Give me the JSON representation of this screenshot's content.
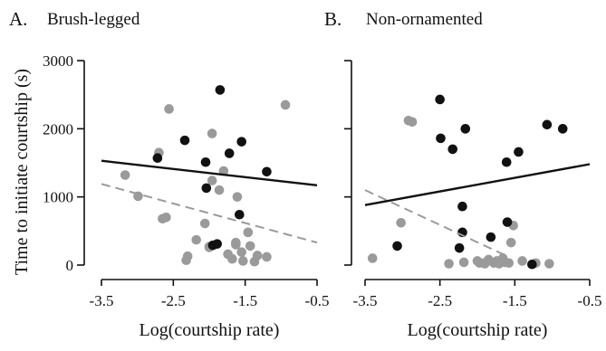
{
  "figure": {
    "ylabel": "Time to initiate courtship (s)",
    "colors": {
      "black_series": "#111111",
      "gray_series": "#9a9a9a",
      "gray_line": "#9a9a9a",
      "axis": "#111111"
    }
  },
  "chart_data": [
    {
      "type": "scatter",
      "panel_letter": "A.",
      "title": "Brush-legged",
      "xlabel": "Log(courtship rate)",
      "ylabel": "Time to initiate courtship (s)",
      "xlim": [
        -3.5,
        -0.5
      ],
      "ylim": [
        0,
        3000
      ],
      "xticks": [
        "-3.5",
        "-2.5",
        "-1.5",
        "-0.5"
      ],
      "xtick_values": [
        -3.5,
        -2.5,
        -1.5,
        -0.5
      ],
      "yticks": [
        "3000",
        "2000",
        "1000",
        "0"
      ],
      "ytick_values": [
        3000,
        2000,
        1000,
        0
      ],
      "grid": false,
      "series": [
        {
          "color": "#111111",
          "fit_line": {
            "x": [
              -3.5,
              -0.5
            ],
            "y": [
              1530,
              1170
            ],
            "style": "solid"
          },
          "points": [
            [
              -2.72,
              1570
            ],
            [
              -2.34,
              1830
            ],
            [
              -2.05,
              1510
            ],
            [
              -2.04,
              1130
            ],
            [
              -1.85,
              2570
            ],
            [
              -1.72,
              1640
            ],
            [
              -1.55,
              1810
            ],
            [
              -1.58,
              740
            ],
            [
              -1.2,
              1370
            ],
            [
              -1.95,
              290
            ],
            [
              -1.89,
              310
            ]
          ]
        },
        {
          "color": "#9a9a9a",
          "fit_line": {
            "x": [
              -3.5,
              -0.5
            ],
            "y": [
              1190,
              330
            ],
            "style": "dashed"
          },
          "points": [
            [
              -3.17,
              1320
            ],
            [
              -2.99,
              1010
            ],
            [
              -2.7,
              1650
            ],
            [
              -2.65,
              680
            ],
            [
              -2.56,
              2290
            ],
            [
              -2.6,
              700
            ],
            [
              -2.32,
              70
            ],
            [
              -2.3,
              130
            ],
            [
              -2.18,
              370
            ],
            [
              -2.06,
              610
            ],
            [
              -2.0,
              270
            ],
            [
              -1.96,
              1930
            ],
            [
              -1.96,
              1240
            ],
            [
              -1.86,
              1100
            ],
            [
              -1.8,
              1380
            ],
            [
              -1.74,
              160
            ],
            [
              -1.68,
              90
            ],
            [
              -1.63,
              330
            ],
            [
              -1.61,
              1000
            ],
            [
              -1.55,
              190
            ],
            [
              -1.53,
              60
            ],
            [
              -1.46,
              480
            ],
            [
              -1.43,
              280
            ],
            [
              -1.37,
              50
            ],
            [
              -1.33,
              140
            ],
            [
              -1.2,
              120
            ],
            [
              -0.94,
              2350
            ],
            [
              -1.63,
              300
            ],
            [
              -2.0,
              260
            ]
          ]
        }
      ]
    },
    {
      "type": "scatter",
      "panel_letter": "B.",
      "title": "Non-ornamented",
      "xlabel": "Log(courtship rate)",
      "xlim": [
        -3.5,
        -0.5
      ],
      "ylim": [
        0,
        3000
      ],
      "xticks": [
        "-3.5",
        "-2.5",
        "-1.5",
        "-0.5"
      ],
      "xtick_values": [
        -3.5,
        -2.5,
        -1.5,
        -0.5
      ],
      "grid": false,
      "series": [
        {
          "color": "#111111",
          "fit_line": {
            "x": [
              -3.5,
              -0.5
            ],
            "y": [
              880,
              1480
            ],
            "style": "solid"
          },
          "points": [
            [
              -3.07,
              280
            ],
            [
              -2.5,
              2430
            ],
            [
              -2.49,
              1860
            ],
            [
              -2.33,
              1700
            ],
            [
              -2.16,
              2000
            ],
            [
              -2.2,
              860
            ],
            [
              -2.2,
              480
            ],
            [
              -2.24,
              250
            ],
            [
              -1.82,
              410
            ],
            [
              -1.61,
              1510
            ],
            [
              -1.6,
              630
            ],
            [
              -1.45,
              1660
            ],
            [
              -1.27,
              10
            ],
            [
              -1.07,
              2060
            ],
            [
              -0.86,
              2000
            ]
          ]
        },
        {
          "color": "#9a9a9a",
          "fit_line": {
            "x": [
              -3.5,
              -1.6
            ],
            "y": [
              1100,
              130
            ],
            "style": "dashed"
          },
          "points": [
            [
              -3.4,
              100
            ],
            [
              -3.02,
              620
            ],
            [
              -2.92,
              2120
            ],
            [
              -2.87,
              2100
            ],
            [
              -2.38,
              20
            ],
            [
              -2.18,
              40
            ],
            [
              -2.0,
              60
            ],
            [
              -1.9,
              20
            ],
            [
              -1.85,
              80
            ],
            [
              -1.78,
              30
            ],
            [
              -1.74,
              60
            ],
            [
              -1.71,
              20
            ],
            [
              -1.66,
              100
            ],
            [
              -1.63,
              40
            ],
            [
              -1.58,
              30
            ],
            [
              -1.52,
              580
            ],
            [
              -1.55,
              330
            ],
            [
              -1.4,
              60
            ],
            [
              -1.22,
              30
            ],
            [
              -1.04,
              20
            ],
            [
              -1.92,
              30
            ],
            [
              -1.97,
              30
            ],
            [
              -1.73,
              40
            ]
          ]
        }
      ]
    }
  ]
}
